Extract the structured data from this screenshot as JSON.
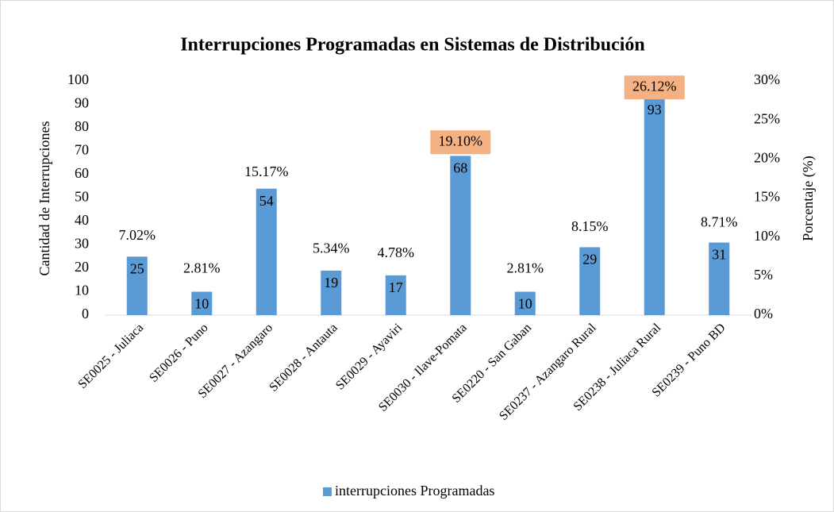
{
  "chart_data": {
    "type": "bar",
    "title": "Interrupciones Programadas en Sistemas de Distribución",
    "y_label": "Cantidad de Interrupciones",
    "y2_label": "Porcentaje (%)",
    "categories": [
      "SE0025 - Juliaca",
      "SE0026 - Puno",
      "SE0027 - Azangaro",
      "SE0028 - Antauta",
      "SE0029 - Ayaviri",
      "SE0030 - Ilave-Pomata",
      "SE0220 - San Gaban",
      "SE0237 - Azangaro Rural",
      "SE0238 - Juliaca Rural",
      "SE0239 - Puno BD"
    ],
    "series": [
      {
        "name": "interrupciones Programadas",
        "color": "#5b9bd5",
        "values": [
          25,
          10,
          54,
          19,
          17,
          68,
          10,
          29,
          93,
          31
        ]
      },
      {
        "axis": "y2",
        "values": [
          7.02,
          2.81,
          15.17,
          5.34,
          4.78,
          19.1,
          2.81,
          8.15,
          26.12,
          8.71
        ],
        "value_labels": [
          "7.02%",
          "2.81%",
          "15.17%",
          "5.34%",
          "4.78%",
          "19.10%",
          "2.81%",
          "8.15%",
          "26.12%",
          "8.71%"
        ],
        "highlight": [
          5,
          8
        ],
        "highlight_color": "#f4b183"
      }
    ],
    "ylim": [
      0,
      100
    ],
    "yticks": [
      0,
      10,
      20,
      30,
      40,
      50,
      60,
      70,
      80,
      90,
      100
    ],
    "y2lim": [
      0,
      30
    ],
    "y2ticks": [
      {
        "value": 0,
        "label": "0%"
      },
      {
        "value": 5,
        "label": "5%"
      },
      {
        "value": 10,
        "label": "10%"
      },
      {
        "value": 15,
        "label": "15%"
      },
      {
        "value": 20,
        "label": "20%"
      },
      {
        "value": 25,
        "label": "25%"
      },
      {
        "value": 30,
        "label": "30%"
      }
    ],
    "legend": "bottom"
  }
}
